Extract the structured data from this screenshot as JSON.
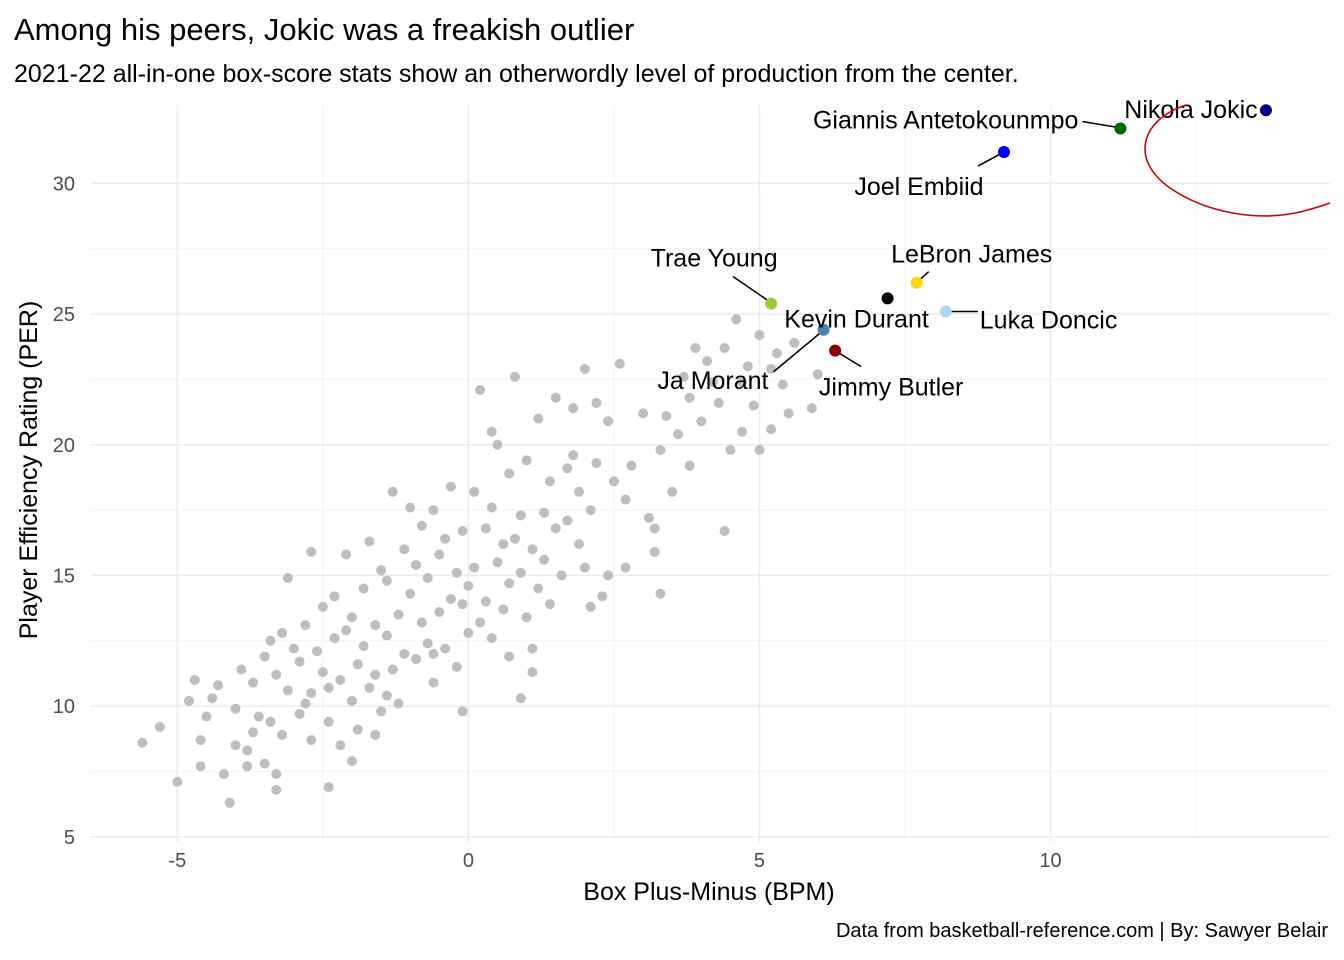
{
  "title": "Among his peers, Jokic was a freakish outlier",
  "subtitle": "2021-22 all-in-one box-score stats show an otherwordly level of production from the center.",
  "caption": "Data from basketball-reference.com | By: Sawyer Belair",
  "chart_data": {
    "type": "scatter",
    "xlabel": "Box Plus-Minus (BPM)",
    "ylabel": "Player Efficiency Rating (PER)",
    "xlim": [
      -6.5,
      14.8
    ],
    "ylim": [
      4.8,
      33.0
    ],
    "x_ticks": [
      -5,
      0,
      5,
      10
    ],
    "y_ticks": [
      5,
      10,
      15,
      20,
      25,
      30
    ],
    "grid": true,
    "legend": "none",
    "background_points_color": "#bebebe",
    "background_points": [
      [
        -5.6,
        8.6
      ],
      [
        -5.3,
        9.2
      ],
      [
        -5.0,
        7.1
      ],
      [
        -4.8,
        10.2
      ],
      [
        -4.7,
        11.0
      ],
      [
        -4.6,
        7.7
      ],
      [
        -4.5,
        9.6
      ],
      [
        -4.4,
        10.3
      ],
      [
        -4.3,
        10.8
      ],
      [
        -4.2,
        7.4
      ],
      [
        -4.1,
        6.3
      ],
      [
        -4.0,
        8.5
      ],
      [
        -4.0,
        9.9
      ],
      [
        -3.9,
        11.4
      ],
      [
        -3.8,
        8.3
      ],
      [
        -3.7,
        9.0
      ],
      [
        -3.7,
        10.9
      ],
      [
        -3.6,
        9.6
      ],
      [
        -3.5,
        7.8
      ],
      [
        -3.5,
        11.9
      ],
      [
        -3.4,
        12.5
      ],
      [
        -3.4,
        9.4
      ],
      [
        -3.3,
        11.2
      ],
      [
        -3.3,
        7.4
      ],
      [
        -3.2,
        8.9
      ],
      [
        -3.2,
        12.8
      ],
      [
        -3.1,
        10.6
      ],
      [
        -3.1,
        14.9
      ],
      [
        -3.0,
        12.2
      ],
      [
        -2.9,
        11.7
      ],
      [
        -2.9,
        9.7
      ],
      [
        -2.8,
        13.1
      ],
      [
        -2.8,
        10.1
      ],
      [
        -2.7,
        15.9
      ],
      [
        -2.7,
        8.7
      ],
      [
        -2.6,
        12.1
      ],
      [
        -2.5,
        11.3
      ],
      [
        -2.5,
        13.8
      ],
      [
        -2.4,
        10.7
      ],
      [
        -2.4,
        9.4
      ],
      [
        -2.3,
        12.6
      ],
      [
        -2.3,
        14.2
      ],
      [
        -2.2,
        11.0
      ],
      [
        -2.2,
        8.5
      ],
      [
        -2.1,
        15.8
      ],
      [
        -2.1,
        12.9
      ],
      [
        -2.0,
        10.2
      ],
      [
        -2.0,
        13.4
      ],
      [
        -1.9,
        11.6
      ],
      [
        -1.9,
        9.1
      ],
      [
        -1.8,
        14.5
      ],
      [
        -1.8,
        12.3
      ],
      [
        -1.7,
        10.7
      ],
      [
        -1.7,
        16.3
      ],
      [
        -1.6,
        13.1
      ],
      [
        -1.6,
        11.2
      ],
      [
        -1.5,
        15.2
      ],
      [
        -1.5,
        9.8
      ],
      [
        -1.4,
        12.7
      ],
      [
        -1.4,
        14.8
      ],
      [
        -1.3,
        11.4
      ],
      [
        -1.3,
        18.2
      ],
      [
        -1.2,
        13.5
      ],
      [
        -1.2,
        10.1
      ],
      [
        -1.1,
        16.0
      ],
      [
        -1.1,
        12.0
      ],
      [
        -1.0,
        14.3
      ],
      [
        -1.0,
        17.6
      ],
      [
        -0.9,
        11.8
      ],
      [
        -0.9,
        15.4
      ],
      [
        -0.8,
        13.2
      ],
      [
        -0.8,
        16.9
      ],
      [
        -0.7,
        12.4
      ],
      [
        -0.7,
        14.9
      ],
      [
        -0.6,
        10.9
      ],
      [
        -0.6,
        17.5
      ],
      [
        -0.5,
        15.8
      ],
      [
        -0.5,
        13.6
      ],
      [
        -0.4,
        12.2
      ],
      [
        -0.4,
        16.4
      ],
      [
        -0.3,
        14.1
      ],
      [
        -0.3,
        18.4
      ],
      [
        -0.2,
        15.1
      ],
      [
        -0.2,
        11.5
      ],
      [
        -0.1,
        13.9
      ],
      [
        -0.1,
        16.7
      ],
      [
        0.0,
        14.6
      ],
      [
        0.0,
        12.8
      ],
      [
        0.1,
        18.2
      ],
      [
        0.1,
        15.3
      ],
      [
        0.2,
        13.2
      ],
      [
        0.2,
        22.1
      ],
      [
        0.3,
        16.8
      ],
      [
        0.3,
        14.0
      ],
      [
        0.4,
        17.6
      ],
      [
        0.4,
        12.6
      ],
      [
        0.5,
        15.5
      ],
      [
        0.5,
        20.0
      ],
      [
        0.6,
        13.7
      ],
      [
        0.6,
        16.2
      ],
      [
        0.7,
        18.9
      ],
      [
        0.7,
        14.7
      ],
      [
        0.8,
        16.4
      ],
      [
        0.8,
        22.6
      ],
      [
        0.9,
        15.1
      ],
      [
        0.9,
        17.3
      ],
      [
        1.0,
        13.4
      ],
      [
        1.0,
        19.4
      ],
      [
        1.1,
        16.0
      ],
      [
        1.1,
        11.3
      ],
      [
        1.2,
        14.5
      ],
      [
        1.2,
        21.0
      ],
      [
        1.3,
        17.4
      ],
      [
        1.3,
        15.6
      ],
      [
        1.4,
        18.6
      ],
      [
        1.4,
        13.9
      ],
      [
        1.5,
        21.8
      ],
      [
        1.5,
        16.8
      ],
      [
        1.6,
        15.0
      ],
      [
        1.7,
        19.1
      ],
      [
        1.7,
        17.1
      ],
      [
        1.8,
        21.4
      ],
      [
        1.9,
        16.2
      ],
      [
        1.9,
        18.2
      ],
      [
        2.0,
        15.3
      ],
      [
        2.0,
        22.9
      ],
      [
        2.1,
        17.5
      ],
      [
        2.2,
        21.6
      ],
      [
        2.2,
        19.3
      ],
      [
        2.3,
        14.2
      ],
      [
        2.4,
        20.9
      ],
      [
        2.5,
        18.6
      ],
      [
        2.6,
        23.1
      ],
      [
        2.7,
        17.9
      ],
      [
        2.7,
        15.3
      ],
      [
        2.8,
        19.2
      ],
      [
        3.0,
        21.2
      ],
      [
        3.1,
        17.2
      ],
      [
        3.2,
        15.9
      ],
      [
        3.3,
        19.8
      ],
      [
        3.4,
        21.1
      ],
      [
        3.5,
        18.2
      ],
      [
        3.6,
        20.4
      ],
      [
        3.7,
        22.6
      ],
      [
        3.8,
        21.8
      ],
      [
        3.9,
        23.7
      ],
      [
        4.0,
        20.9
      ],
      [
        4.1,
        23.2
      ],
      [
        4.2,
        22.4
      ],
      [
        4.3,
        21.6
      ],
      [
        4.4,
        23.7
      ],
      [
        4.5,
        19.8
      ],
      [
        4.6,
        24.8
      ],
      [
        4.7,
        22.4
      ],
      [
        4.8,
        23.0
      ],
      [
        4.9,
        21.5
      ],
      [
        5.0,
        24.2
      ],
      [
        5.0,
        19.8
      ],
      [
        5.2,
        22.9
      ],
      [
        5.3,
        23.5
      ],
      [
        5.4,
        22.3
      ],
      [
        5.5,
        21.2
      ],
      [
        5.6,
        23.9
      ],
      [
        5.9,
        21.4
      ],
      [
        6.0,
        22.7
      ],
      [
        5.2,
        20.6
      ],
      [
        4.4,
        16.7
      ],
      [
        3.3,
        14.3
      ],
      [
        2.1,
        13.8
      ],
      [
        0.9,
        10.3
      ],
      [
        -2.4,
        6.9
      ],
      [
        -3.3,
        6.8
      ],
      [
        -4.6,
        8.7
      ],
      [
        -1.6,
        8.9
      ],
      [
        1.1,
        12.2
      ],
      [
        3.2,
        16.8
      ],
      [
        1.8,
        19.6
      ],
      [
        0.4,
        20.5
      ],
      [
        -0.6,
        12.0
      ],
      [
        -1.4,
        10.4
      ],
      [
        -2.0,
        7.9
      ],
      [
        -2.7,
        10.5
      ],
      [
        -3.8,
        7.7
      ],
      [
        -0.1,
        9.8
      ],
      [
        0.7,
        11.9
      ],
      [
        2.4,
        15.0
      ],
      [
        3.8,
        19.2
      ],
      [
        4.7,
        20.5
      ]
    ],
    "highlighted": [
      {
        "name": "Nikola Jokic",
        "x": 13.7,
        "y": 32.8,
        "color": "#00008b"
      },
      {
        "name": "Giannis Antetokounmpo",
        "x": 11.2,
        "y": 32.1,
        "color": "#006400"
      },
      {
        "name": "Joel Embiid",
        "x": 9.2,
        "y": 31.2,
        "color": "#0000ff"
      },
      {
        "name": "LeBron James",
        "x": 7.7,
        "y": 26.2,
        "color": "#ffd700"
      },
      {
        "name": "Luka Doncic",
        "x": 8.2,
        "y": 25.1,
        "color": "#add8e6"
      },
      {
        "name": "Trae Young",
        "x": 5.2,
        "y": 25.4,
        "color": "#9acd32"
      },
      {
        "name": "Kevin Durant",
        "x": 7.2,
        "y": 25.6,
        "color": "#000000"
      },
      {
        "name": "Ja Morant",
        "x": 6.1,
        "y": 24.4,
        "color": "#4682b4"
      },
      {
        "name": "Jimmy Butler",
        "x": 6.3,
        "y": 23.6,
        "color": "#8b0000"
      }
    ],
    "annotations": [
      {
        "type": "ellipse",
        "around": "Nikola Jokic",
        "color": "#d00000"
      }
    ]
  }
}
